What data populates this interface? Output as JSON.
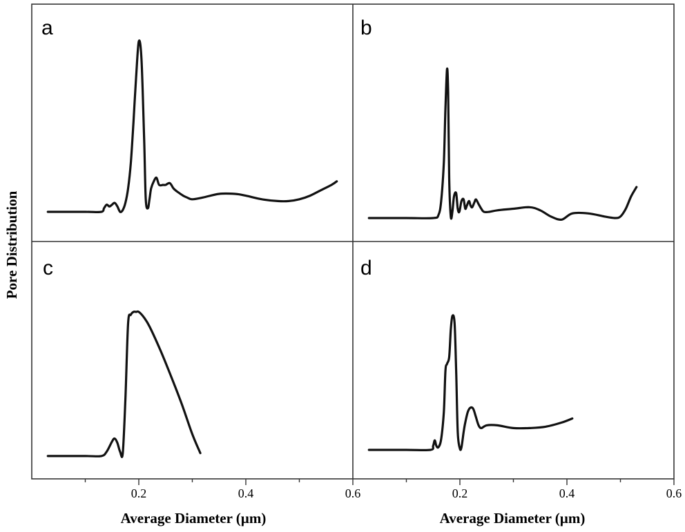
{
  "figure": {
    "y_axis_label": "Pore Distribution",
    "x_axis_label_left": "Average Diameter (µm)",
    "x_axis_label_right": "Average Diameter (µm)"
  },
  "chart_data": [
    {
      "type": "line",
      "panel": "a",
      "xlim": [
        0,
        0.6
      ],
      "x_ticks": [
        "0.2",
        "0.4",
        "0.6"
      ],
      "y_ticks": [],
      "series": [
        {
          "x": [
            0.03,
            0.1,
            0.13,
            0.135,
            0.14,
            0.145,
            0.15,
            0.155,
            0.16,
            0.165,
            0.17,
            0.175,
            0.18,
            0.185,
            0.19,
            0.195,
            0.2,
            0.205,
            0.21,
            0.213,
            0.217,
            0.22,
            0.223,
            0.228,
            0.233,
            0.238,
            0.245,
            0.25,
            0.258,
            0.265,
            0.273,
            0.283,
            0.29,
            0.3,
            0.32,
            0.35,
            0.38,
            0.4,
            0.43,
            0.46,
            0.48,
            0.5,
            0.52,
            0.54,
            0.56,
            0.57
          ],
          "y": [
            0.05,
            0.05,
            0.05,
            0.07,
            0.09,
            0.08,
            0.09,
            0.1,
            0.08,
            0.05,
            0.06,
            0.1,
            0.18,
            0.32,
            0.55,
            0.8,
            1.0,
            0.9,
            0.45,
            0.12,
            0.07,
            0.12,
            0.18,
            0.22,
            0.24,
            0.2,
            0.2,
            0.2,
            0.21,
            0.18,
            0.16,
            0.14,
            0.13,
            0.12,
            0.13,
            0.15,
            0.15,
            0.14,
            0.12,
            0.11,
            0.11,
            0.12,
            0.14,
            0.17,
            0.2,
            0.22
          ]
        }
      ]
    },
    {
      "type": "line",
      "panel": "b",
      "xlim": [
        0,
        0.6
      ],
      "x_ticks": [
        "0.2",
        "0.4",
        "0.6"
      ],
      "y_ticks": [],
      "series": [
        {
          "x": [
            0.03,
            0.1,
            0.15,
            0.16,
            0.165,
            0.17,
            0.173,
            0.176,
            0.178,
            0.18,
            0.183,
            0.186,
            0.189,
            0.193,
            0.196,
            0.199,
            0.203,
            0.207,
            0.21,
            0.213,
            0.217,
            0.22,
            0.223,
            0.227,
            0.23,
            0.235,
            0.24,
            0.245,
            0.255,
            0.27,
            0.3,
            0.33,
            0.35,
            0.37,
            0.39,
            0.41,
            0.44,
            0.47,
            0.49,
            0.5,
            0.51,
            0.52,
            0.53
          ],
          "y": [
            0.04,
            0.04,
            0.04,
            0.06,
            0.15,
            0.4,
            0.75,
            1.0,
            0.85,
            0.3,
            0.05,
            0.08,
            0.18,
            0.2,
            0.1,
            0.08,
            0.15,
            0.16,
            0.1,
            0.12,
            0.15,
            0.12,
            0.11,
            0.14,
            0.16,
            0.13,
            0.1,
            0.08,
            0.08,
            0.09,
            0.1,
            0.11,
            0.09,
            0.05,
            0.03,
            0.07,
            0.07,
            0.05,
            0.04,
            0.05,
            0.1,
            0.18,
            0.24
          ]
        }
      ]
    },
    {
      "type": "line",
      "panel": "c",
      "xlim": [
        0,
        0.6
      ],
      "x_ticks": [
        "0.2",
        "0.4",
        "0.6"
      ],
      "y_ticks": [],
      "series": [
        {
          "x": [
            0.03,
            0.1,
            0.13,
            0.14,
            0.15,
            0.155,
            0.16,
            0.165,
            0.17,
            0.175,
            0.18,
            0.185,
            0.19,
            0.195,
            0.2,
            0.21,
            0.22,
            0.24,
            0.26,
            0.28,
            0.3,
            0.315
          ],
          "y": [
            0.01,
            0.01,
            0.01,
            0.04,
            0.11,
            0.13,
            0.1,
            0.04,
            0.03,
            0.4,
            0.92,
            0.98,
            1.0,
            1.0,
            1.0,
            0.96,
            0.9,
            0.74,
            0.56,
            0.37,
            0.16,
            0.03
          ]
        }
      ]
    },
    {
      "type": "line",
      "panel": "d",
      "xlim": [
        0,
        0.6
      ],
      "x_ticks": [
        "0.2",
        "0.4",
        "0.6"
      ],
      "y_ticks": [],
      "series": [
        {
          "x": [
            0.03,
            0.1,
            0.145,
            0.15,
            0.153,
            0.156,
            0.16,
            0.165,
            0.17,
            0.173,
            0.176,
            0.18,
            0.183,
            0.186,
            0.19,
            0.193,
            0.196,
            0.2,
            0.203,
            0.207,
            0.21,
            0.215,
            0.22,
            0.225,
            0.23,
            0.235,
            0.24,
            0.25,
            0.27,
            0.3,
            0.33,
            0.36,
            0.39,
            0.41
          ],
          "y": [
            0.02,
            0.02,
            0.02,
            0.05,
            0.09,
            0.05,
            0.04,
            0.1,
            0.3,
            0.6,
            0.65,
            0.7,
            0.9,
            1.0,
            0.95,
            0.6,
            0.15,
            0.03,
            0.04,
            0.15,
            0.22,
            0.3,
            0.33,
            0.32,
            0.26,
            0.2,
            0.18,
            0.2,
            0.2,
            0.18,
            0.18,
            0.19,
            0.22,
            0.25
          ]
        }
      ]
    }
  ]
}
